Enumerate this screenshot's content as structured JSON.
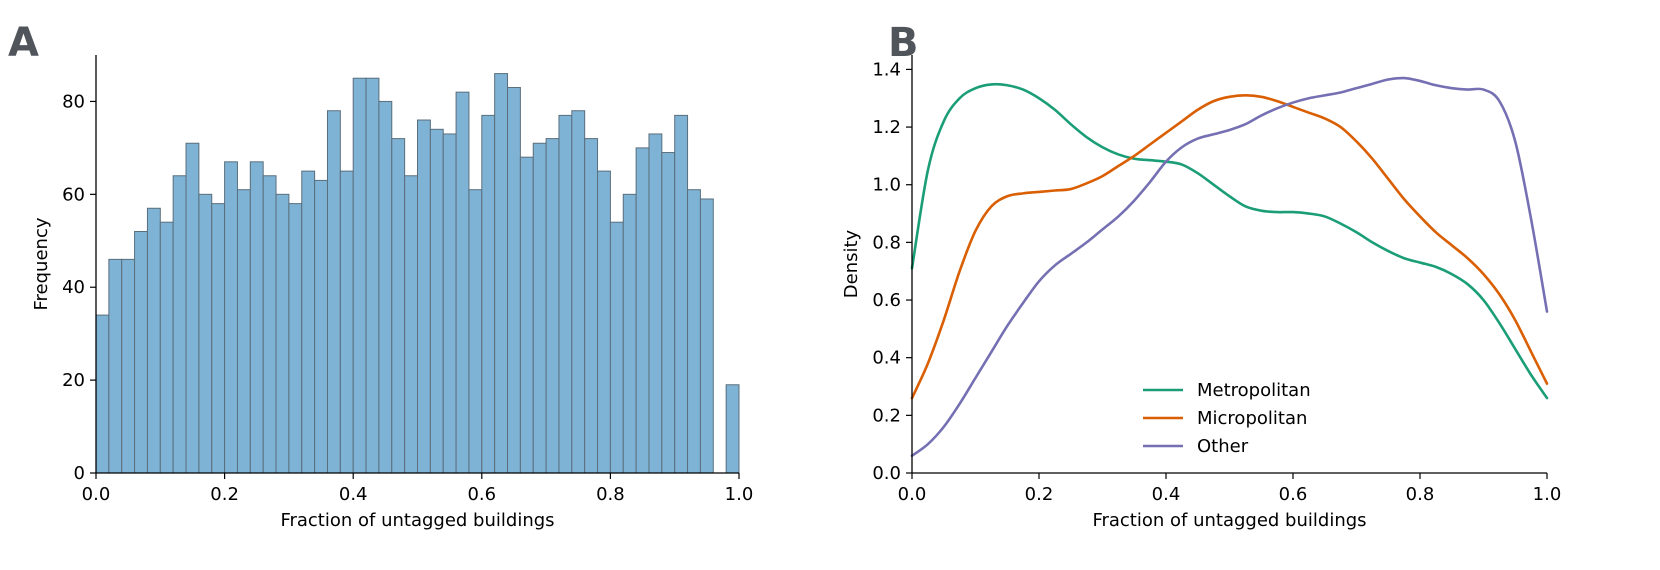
{
  "chart_data": [
    {
      "panel": "A",
      "type": "bar",
      "title": "",
      "xlabel": "Fraction of untagged buildings",
      "ylabel": "Frequency",
      "xlim": [
        0,
        1
      ],
      "ylim": [
        0,
        90
      ],
      "xticks": [
        "0.0",
        "0.2",
        "0.4",
        "0.6",
        "0.8",
        "1.0"
      ],
      "yticks": [
        "0",
        "20",
        "40",
        "60",
        "80"
      ],
      "bins": 50,
      "bar_color": "#7fb3d5",
      "edge_color": "#5a6e7c",
      "values": [
        34,
        46,
        46,
        52,
        57,
        54,
        64,
        71,
        60,
        58,
        67,
        61,
        67,
        64,
        60,
        58,
        65,
        63,
        78,
        65,
        85,
        85,
        80,
        72,
        64,
        76,
        74,
        73,
        82,
        61,
        77,
        86,
        83,
        68,
        71,
        72,
        77,
        78,
        72,
        65,
        54,
        60,
        70,
        73,
        69,
        77,
        61,
        59,
        0,
        19
      ],
      "grid": false
    },
    {
      "panel": "B",
      "type": "line",
      "title": "",
      "xlabel": "Fraction of untagged buildings",
      "ylabel": "Density",
      "xlim": [
        0,
        1
      ],
      "ylim": [
        0,
        1.45
      ],
      "xticks": [
        "0.0",
        "0.2",
        "0.4",
        "0.6",
        "0.8",
        "1.0"
      ],
      "yticks": [
        "0.0",
        "0.2",
        "0.4",
        "0.6",
        "0.8",
        "1.0",
        "1.2",
        "1.4"
      ],
      "grid": false,
      "legend_position": "bottom-center",
      "x": [
        0.0,
        0.025,
        0.05,
        0.075,
        0.1,
        0.125,
        0.15,
        0.175,
        0.2,
        0.225,
        0.25,
        0.275,
        0.3,
        0.325,
        0.35,
        0.375,
        0.4,
        0.425,
        0.45,
        0.475,
        0.5,
        0.525,
        0.55,
        0.575,
        0.6,
        0.625,
        0.65,
        0.675,
        0.7,
        0.725,
        0.75,
        0.775,
        0.8,
        0.825,
        0.85,
        0.875,
        0.9,
        0.925,
        0.95,
        0.975,
        1.0
      ],
      "series": [
        {
          "name": "Metropolitan",
          "color": "#1b9e77",
          "values": [
            0.71,
            1.05,
            1.22,
            1.3,
            1.335,
            1.348,
            1.345,
            1.33,
            1.3,
            1.26,
            1.21,
            1.165,
            1.13,
            1.105,
            1.09,
            1.085,
            1.08,
            1.07,
            1.04,
            1.0,
            0.96,
            0.925,
            0.91,
            0.905,
            0.905,
            0.9,
            0.89,
            0.865,
            0.835,
            0.8,
            0.77,
            0.745,
            0.73,
            0.715,
            0.69,
            0.655,
            0.6,
            0.52,
            0.43,
            0.34,
            0.26
          ]
        },
        {
          "name": "Micropolitan",
          "color": "#d95f02",
          "values": [
            0.26,
            0.38,
            0.53,
            0.7,
            0.84,
            0.925,
            0.96,
            0.97,
            0.975,
            0.98,
            0.985,
            1.005,
            1.03,
            1.065,
            1.1,
            1.14,
            1.18,
            1.22,
            1.26,
            1.29,
            1.305,
            1.31,
            1.305,
            1.29,
            1.27,
            1.25,
            1.23,
            1.2,
            1.15,
            1.09,
            1.02,
            0.95,
            0.89,
            0.835,
            0.79,
            0.745,
            0.69,
            0.62,
            0.53,
            0.42,
            0.31
          ]
        },
        {
          "name": "Other",
          "color": "#7570b3",
          "values": [
            0.06,
            0.1,
            0.16,
            0.24,
            0.33,
            0.42,
            0.51,
            0.59,
            0.665,
            0.72,
            0.76,
            0.8,
            0.845,
            0.89,
            0.945,
            1.01,
            1.08,
            1.13,
            1.16,
            1.175,
            1.19,
            1.21,
            1.24,
            1.265,
            1.285,
            1.3,
            1.31,
            1.32,
            1.335,
            1.35,
            1.365,
            1.37,
            1.36,
            1.345,
            1.335,
            1.33,
            1.33,
            1.29,
            1.15,
            0.88,
            0.56
          ]
        }
      ]
    }
  ]
}
